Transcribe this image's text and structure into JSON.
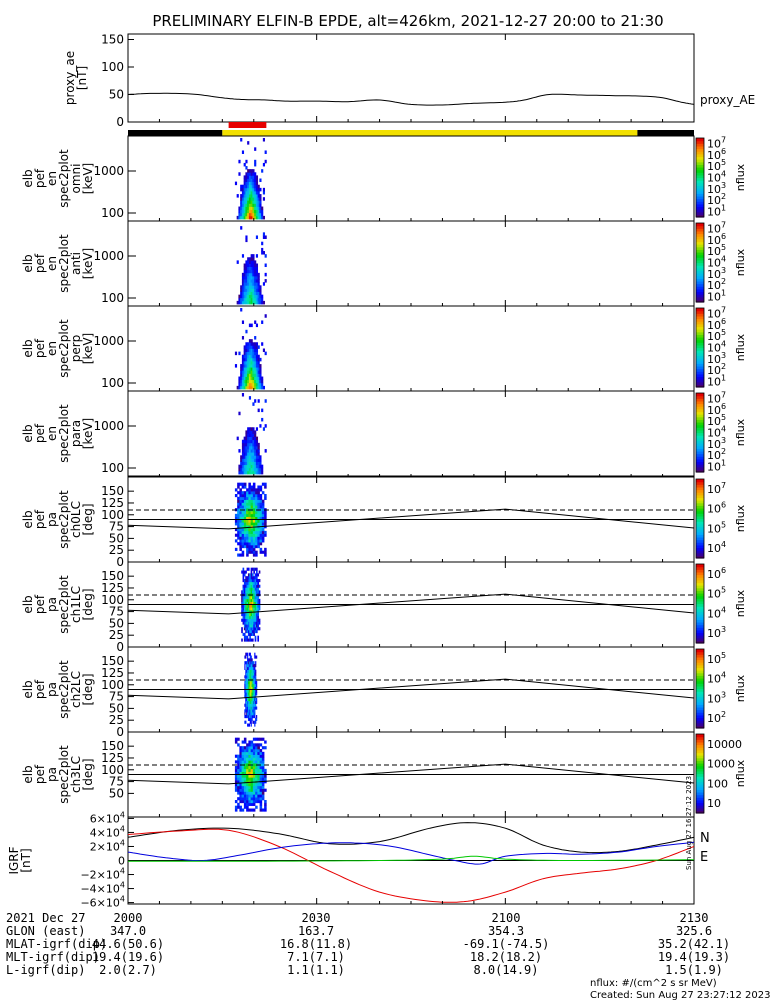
{
  "title": "PRELIMINARY ELFIN-B EPDE, alt=426km, 2021-12-27 20:00 to 21:30",
  "credit": {
    "units": "nflux: #/(cm^2 s sr MeV)",
    "created": "Created: Sun Aug 27 23:27:12 2023",
    "vertical_stamp": "Sun Aug 27 16:27:12 2023"
  },
  "colors": {
    "black": "#000000",
    "yellow": "#f2e000",
    "red": "#e60000",
    "blue": "#0000dd",
    "green": "#00c800",
    "dashed": "#000000"
  },
  "chart_data": [
    {
      "panel": "proxy_ae",
      "type": "line",
      "ylabel": [
        "proxy_ae",
        "[nT]"
      ],
      "yticks": [
        "0",
        "50",
        "100",
        "150"
      ],
      "ylim": [
        0,
        160
      ],
      "legend": "proxy_AE",
      "x_minutes": [
        0,
        4,
        10,
        15,
        18,
        22,
        25,
        30,
        35,
        40,
        45,
        50,
        55,
        60,
        63,
        67,
        72,
        77,
        82,
        85,
        88,
        90
      ],
      "values": [
        50,
        52,
        51,
        44,
        41,
        40,
        38,
        38,
        37,
        40,
        32,
        31,
        34,
        36,
        40,
        50,
        49,
        48,
        47,
        44,
        36,
        32
      ]
    },
    {
      "panel": "orbit-bar",
      "type": "bar",
      "segments": [
        {
          "from": 0,
          "to": 15,
          "color": "black"
        },
        {
          "from": 15,
          "to": 81,
          "color": "yellow"
        },
        {
          "from": 81,
          "to": 90,
          "color": "black"
        }
      ],
      "highlight": {
        "from": 16,
        "to": 22,
        "color": "red"
      }
    },
    {
      "panel": "elb_pef_en_spec2plot_omni",
      "type": "heatmap",
      "ylabel": [
        "elb",
        "pef",
        "en",
        "spec2plot",
        "omni",
        "[keV]"
      ],
      "yticks": [
        "100",
        "1000"
      ],
      "colorbar": {
        "label": "nflux",
        "ticks": [
          "10^1",
          "10^2",
          "10^3",
          "10^4",
          "10^5",
          "10^6",
          "10^7"
        ]
      },
      "time_window": [
        17,
        22
      ],
      "peak_intensity": 1.0
    },
    {
      "panel": "elb_pef_en_spec2plot_anti",
      "type": "heatmap",
      "ylabel": [
        "elb",
        "pef",
        "en",
        "spec2plot",
        "anti",
        "[keV]"
      ],
      "yticks": [
        "100",
        "1000"
      ],
      "colorbar": {
        "label": "nflux",
        "ticks": [
          "10^1",
          "10^2",
          "10^3",
          "10^4",
          "10^5",
          "10^6",
          "10^7"
        ]
      },
      "time_window": [
        17,
        22
      ],
      "peak_intensity": 0.6
    },
    {
      "panel": "elb_pef_en_spec2plot_perp",
      "type": "heatmap",
      "ylabel": [
        "elb",
        "pef",
        "en",
        "spec2plot",
        "perp",
        "[keV]"
      ],
      "yticks": [
        "100",
        "1000"
      ],
      "colorbar": {
        "label": "nflux",
        "ticks": [
          "10^1",
          "10^2",
          "10^3",
          "10^4",
          "10^5",
          "10^6",
          "10^7"
        ]
      },
      "time_window": [
        17,
        22
      ],
      "peak_intensity": 0.95
    },
    {
      "panel": "elb_pef_en_spec2plot_para",
      "type": "heatmap",
      "ylabel": [
        "elb",
        "pef",
        "en",
        "spec2plot",
        "para",
        "[keV]"
      ],
      "yticks": [
        "100",
        "1000"
      ],
      "colorbar": {
        "label": "nflux",
        "ticks": [
          "10^1",
          "10^2",
          "10^3",
          "10^4",
          "10^5",
          "10^6",
          "10^7"
        ]
      },
      "time_window": [
        17,
        22
      ],
      "peak_intensity": 0.55
    },
    {
      "panel": "elb_pef_pa_spec2plot_ch0LC",
      "type": "heatmap",
      "ylabel": [
        "elb",
        "pef",
        "pa",
        "spec2plot",
        "ch0LC",
        "[deg]"
      ],
      "yticks": [
        "0",
        "25",
        "50",
        "75",
        "100",
        "125",
        "150"
      ],
      "ylim": [
        0,
        180
      ],
      "colorbar": {
        "label": "nflux",
        "ticks": [
          "10^4",
          "10^5",
          "10^6",
          "10^7"
        ]
      },
      "dashed_line": 110,
      "lc_x": [
        0,
        16,
        60,
        90
      ],
      "lc_y": [
        78,
        70,
        112,
        72
      ],
      "solid_line": 90,
      "time_window": [
        17,
        22
      ]
    },
    {
      "panel": "elb_pef_pa_spec2plot_ch1LC",
      "type": "heatmap",
      "ylabel": [
        "elb",
        "pef",
        "pa",
        "spec2plot",
        "ch1LC",
        "[deg]"
      ],
      "yticks": [
        "0",
        "25",
        "50",
        "75",
        "100",
        "125",
        "150"
      ],
      "ylim": [
        0,
        180
      ],
      "colorbar": {
        "label": "nflux",
        "ticks": [
          "10^3",
          "10^4",
          "10^5",
          "10^6"
        ]
      },
      "dashed_line": 110,
      "lc_x": [
        0,
        16,
        60,
        90
      ],
      "lc_y": [
        78,
        70,
        112,
        72
      ],
      "solid_line": 90,
      "time_window": [
        18,
        21
      ]
    },
    {
      "panel": "elb_pef_pa_spec2plot_ch2LC",
      "type": "heatmap",
      "ylabel": [
        "elb",
        "pef",
        "pa",
        "spec2plot",
        "ch2LC",
        "[deg]"
      ],
      "yticks": [
        "0",
        "25",
        "50",
        "75",
        "100",
        "125",
        "150"
      ],
      "ylim": [
        0,
        180
      ],
      "colorbar": {
        "label": "nflux",
        "ticks": [
          "10^2",
          "10^3",
          "10^4",
          "10^5"
        ]
      },
      "dashed_line": 110,
      "lc_x": [
        0,
        16,
        60,
        90
      ],
      "lc_y": [
        78,
        70,
        112,
        72
      ],
      "solid_line": 90,
      "time_window": [
        18.5,
        20.5
      ]
    },
    {
      "panel": "elb_pef_pa_spec2plot_ch3LC",
      "type": "heatmap",
      "ylabel": [
        "elb",
        "pef",
        "pa",
        "spec2plot",
        "ch3LC",
        "[deg]"
      ],
      "yticks": [
        "50",
        "75",
        "100",
        "125",
        "150"
      ],
      "ylim": [
        0,
        180
      ],
      "colorbar": {
        "label": "nflux",
        "ticks": [
          "10",
          "100",
          "1000",
          "10000"
        ]
      },
      "dashed_line": 110,
      "lc_x": [
        0,
        16,
        60,
        90
      ],
      "lc_y": [
        78,
        70,
        112,
        72
      ],
      "solid_line": 90,
      "time_window": [
        17,
        22
      ]
    },
    {
      "panel": "IGRF",
      "type": "line",
      "ylabel": [
        "IGRF",
        "[nT]"
      ],
      "yticks": [
        "6×10^4",
        "4×10^4",
        "2×10^4",
        "0",
        "−2×10^4",
        "−4×10^4",
        "−6×10^4"
      ],
      "ylim": [
        -62000,
        62000
      ],
      "legend": [
        "N",
        "E"
      ],
      "series": [
        {
          "color": "black",
          "x": [
            0,
            8,
            16,
            24,
            32,
            40,
            48,
            54,
            60,
            66,
            72,
            78,
            84,
            90
          ],
          "y": [
            33000,
            43000,
            46000,
            38000,
            24000,
            27000,
            46000,
            54000,
            46000,
            22000,
            12000,
            13000,
            22000,
            33000
          ]
        },
        {
          "color": "red",
          "x": [
            0,
            8,
            16,
            24,
            32,
            40,
            48,
            54,
            60,
            66,
            72,
            78,
            84,
            90
          ],
          "y": [
            37000,
            42000,
            43000,
            20000,
            -15000,
            -45000,
            -58000,
            -58000,
            -45000,
            -26000,
            -18000,
            -12000,
            0,
            20000
          ]
        },
        {
          "color": "blue",
          "x": [
            0,
            6,
            12,
            18,
            24,
            30,
            36,
            42,
            48,
            52,
            56,
            60,
            66,
            72,
            78,
            84,
            90
          ],
          "y": [
            12000,
            4000,
            0,
            8000,
            18000,
            24000,
            25000,
            20000,
            8000,
            0,
            -5000,
            6000,
            10000,
            9000,
            12000,
            20000,
            26000
          ]
        },
        {
          "color": "green",
          "x": [
            0,
            20,
            40,
            50,
            55,
            60,
            70,
            90
          ],
          "y": [
            -1000,
            -1000,
            0,
            2000,
            6000,
            2000,
            0,
            1000
          ]
        }
      ]
    }
  ],
  "time_axis": {
    "label": "2021 Dec 27",
    "ticks": [
      "2000",
      "2030",
      "2100",
      "2130"
    ]
  },
  "orbit_table": [
    {
      "label": "GLON (east)",
      "values": [
        "347.0",
        "163.7",
        "354.3",
        "325.6"
      ]
    },
    {
      "label": "MLAT-igrf(dip)",
      "values": [
        "44.6(50.6)",
        "16.8(11.8)",
        "-69.1(-74.5)",
        "35.2(42.1)"
      ]
    },
    {
      "label": "MLT-igrf(dip)",
      "values": [
        "19.4(19.6)",
        "7.1(7.1)",
        "18.2(18.2)",
        "19.4(19.3)"
      ]
    },
    {
      "label": "L-igrf(dip)",
      "values": [
        "2.0(2.7)",
        "1.1(1.1)",
        "8.0(14.9)",
        "1.5(1.9)"
      ]
    }
  ]
}
